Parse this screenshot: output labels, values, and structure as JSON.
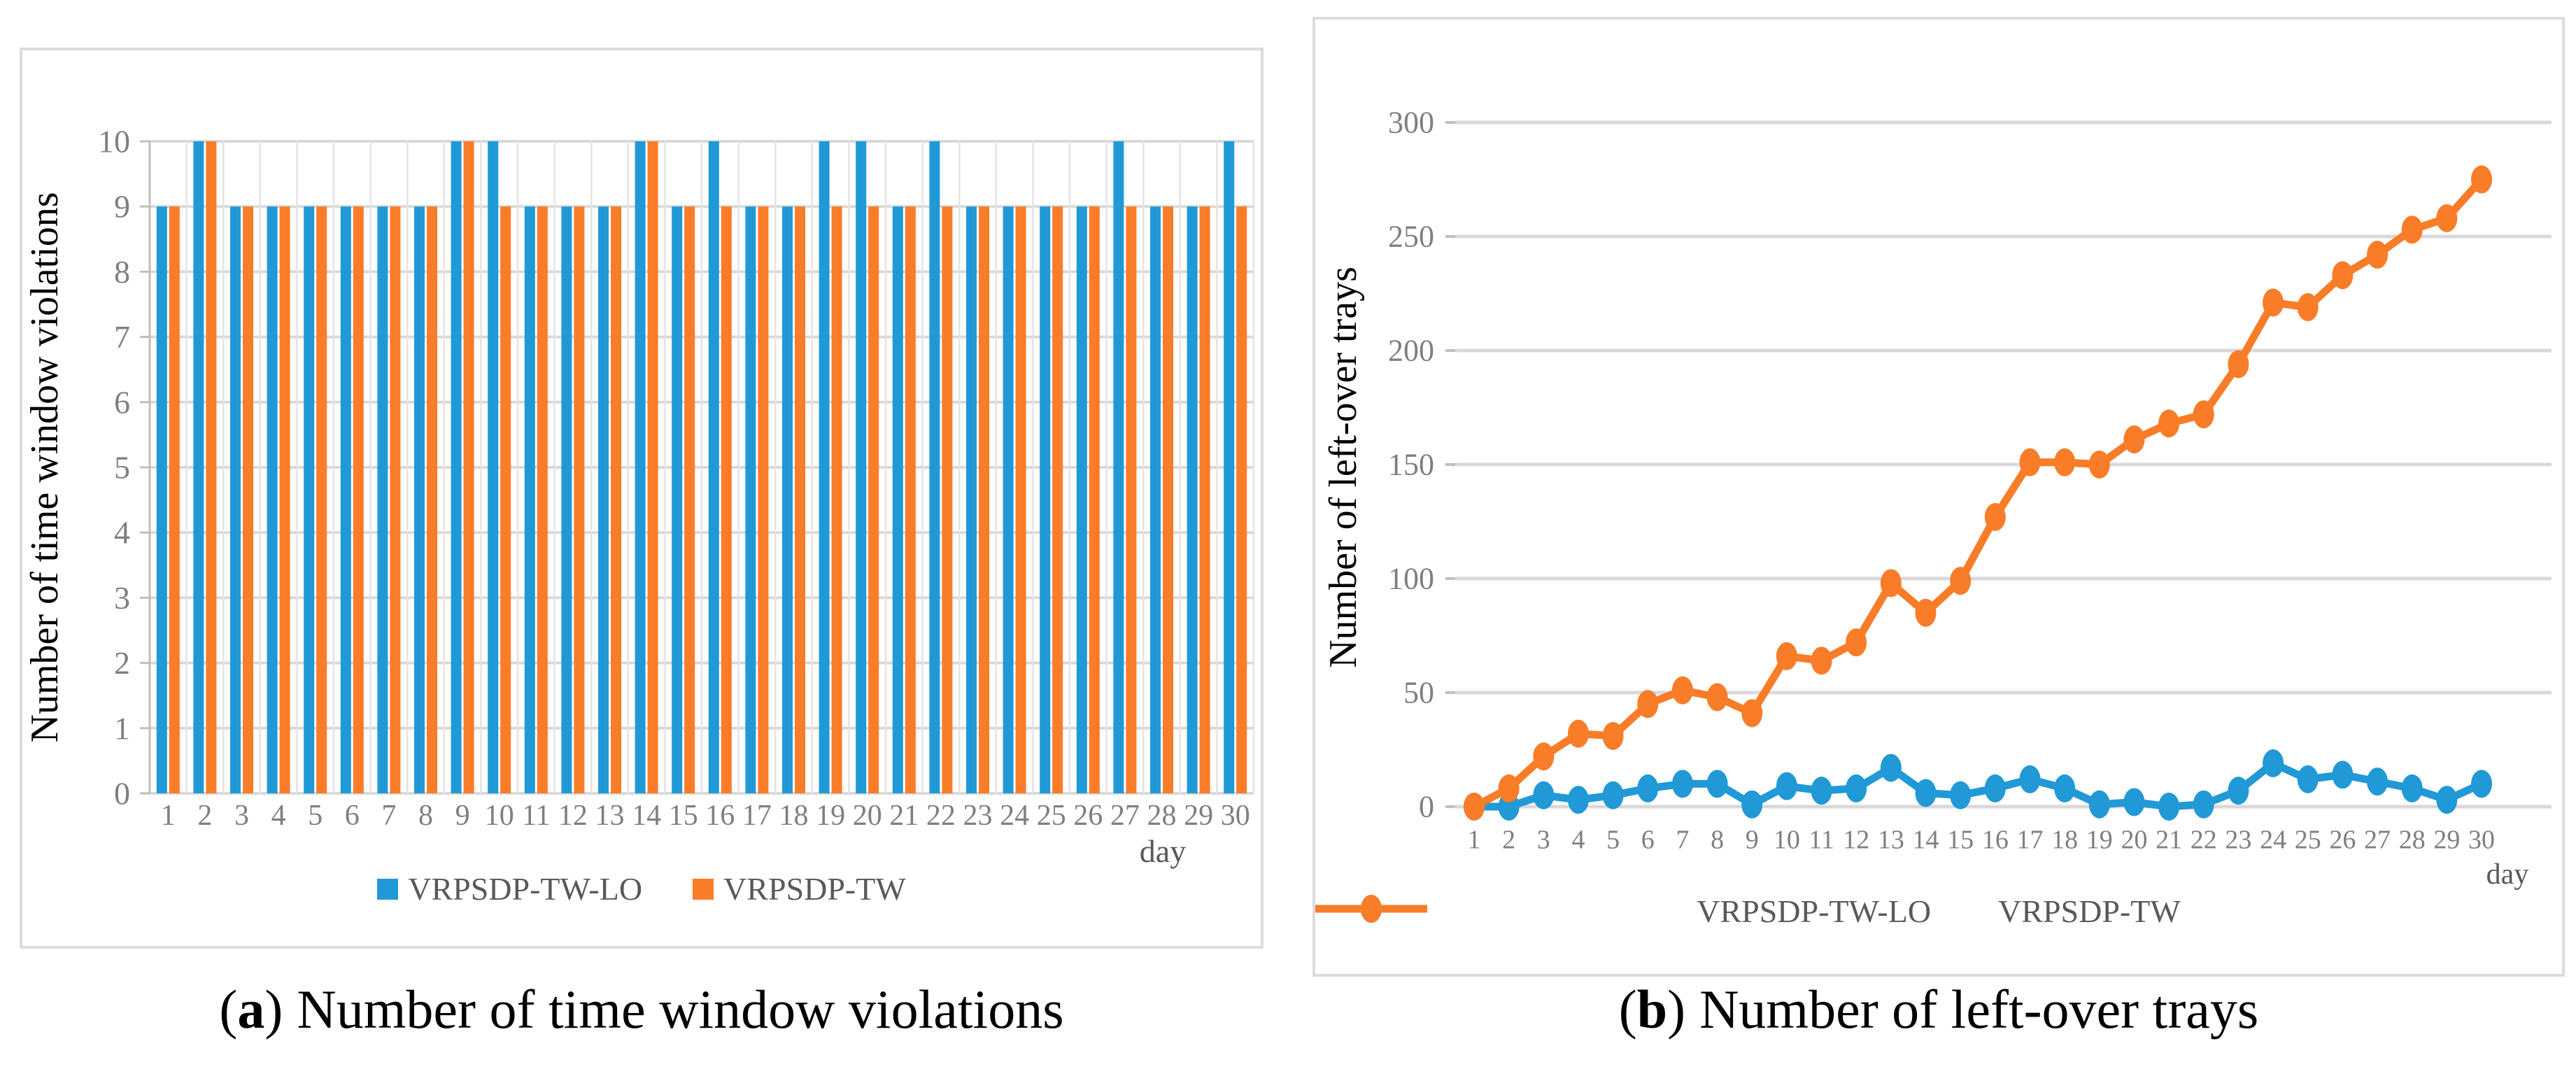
{
  "figure": {
    "panel_a": {
      "caption": {
        "open": "(",
        "letter": "a",
        "close": ")",
        "text": "Number of time window violations"
      },
      "y_axis_title": "Number of time window violations",
      "x_axis_title": "day"
    },
    "panel_b": {
      "caption": {
        "open": "(",
        "letter": "b",
        "close": ")",
        "text": "Number of left-over trays"
      },
      "y_axis_title": "Number of left-over trays",
      "x_axis_title": "day"
    },
    "colors": {
      "series_blue": "#2199D6",
      "series_orange": "#F97C28",
      "gridline": "#D9D9D9",
      "minor_gridline": "#E4E4E4",
      "axis_line": "#BFBFBF",
      "axis_text": "#7F7F7F",
      "legend_text": "#595959"
    }
  },
  "chart_data": [
    {
      "type": "bar",
      "title": "",
      "xlabel": "day",
      "ylabel": "Number of time window violations",
      "ylim": [
        0,
        10
      ],
      "ytick_step": 1,
      "grid": "both",
      "legend_position": "bottom",
      "categories": [
        1,
        2,
        3,
        4,
        5,
        6,
        7,
        8,
        9,
        10,
        11,
        12,
        13,
        14,
        15,
        16,
        17,
        18,
        19,
        20,
        21,
        22,
        23,
        24,
        25,
        26,
        27,
        28,
        29,
        30
      ],
      "series": [
        {
          "name": "VRPSDP-TW-LO",
          "color": "#2199D6",
          "values": [
            9,
            10,
            9,
            9,
            9,
            9,
            9,
            9,
            10,
            10,
            9,
            9,
            9,
            10,
            9,
            10,
            9,
            9,
            10,
            10,
            9,
            10,
            9,
            9,
            9,
            9,
            10,
            9,
            9,
            10
          ]
        },
        {
          "name": "VRPSDP-TW",
          "color": "#F97C28",
          "values": [
            9,
            10,
            9,
            9,
            9,
            9,
            9,
            9,
            10,
            9,
            9,
            9,
            9,
            10,
            9,
            9,
            9,
            9,
            9,
            9,
            9,
            9,
            9,
            9,
            9,
            9,
            9,
            9,
            9,
            9
          ]
        }
      ]
    },
    {
      "type": "line",
      "title": "",
      "xlabel": "day",
      "ylabel": "Number of left-over trays",
      "ylim": [
        0,
        300
      ],
      "ytick_step": 50,
      "grid": "horizontal",
      "legend_position": "bottom",
      "categories": [
        1,
        2,
        3,
        4,
        5,
        6,
        7,
        8,
        9,
        10,
        11,
        12,
        13,
        14,
        15,
        16,
        17,
        18,
        19,
        20,
        21,
        22,
        23,
        24,
        25,
        26,
        27,
        28,
        29,
        30
      ],
      "series": [
        {
          "name": "VRPSDP-TW-LO",
          "color": "#2199D6",
          "values": [
            0,
            0,
            5,
            3,
            5,
            8,
            10,
            10,
            1,
            9,
            7,
            8,
            17,
            6,
            5,
            8,
            12,
            8,
            1,
            2,
            0,
            1,
            7,
            19,
            12,
            14,
            11,
            8,
            3,
            10
          ]
        },
        {
          "name": "VRPSDP-TW",
          "color": "#F97C28",
          "values": [
            0,
            8,
            22,
            32,
            31,
            45,
            51,
            48,
            41,
            66,
            64,
            72,
            98,
            85,
            99,
            127,
            151,
            151,
            150,
            161,
            168,
            172,
            194,
            221,
            219,
            233,
            242,
            253,
            258,
            275
          ]
        }
      ]
    }
  ]
}
